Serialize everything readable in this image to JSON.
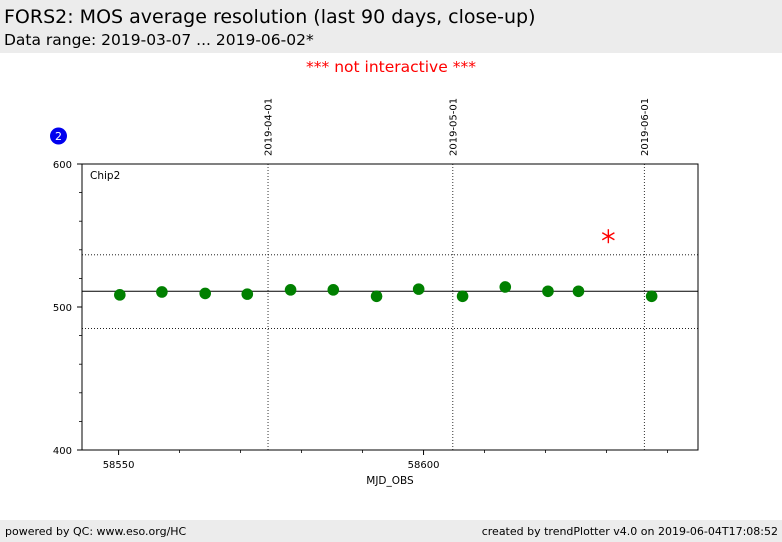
{
  "header": {
    "title": "FORS2: MOS average resolution (last 90 days, close-up)",
    "subtitle": "Data range: 2019-03-07 ... 2019-06-02*"
  },
  "notice": "*** not interactive ***",
  "badge": "2",
  "footer": {
    "left": "powered by QC: www.eso.org/HC",
    "right": "created by trendPlotter v4.0 on 2019-06-04T17:08:52"
  },
  "colors": {
    "point": "#008000",
    "outlier": "#ff0000",
    "badge": "#0000ee",
    "notice": "#ff0000"
  },
  "chart_data": {
    "type": "scatter",
    "panel_label": "Chip2",
    "xlabel": "MJD_OBS",
    "ylabel": "",
    "xlim": [
      58544,
      58645
    ],
    "ylim": [
      400,
      600
    ],
    "x_ticks": [
      58550,
      58600
    ],
    "y_ticks": [
      400,
      500,
      600
    ],
    "date_lines": [
      {
        "label": "2019-04-01",
        "x": 58574.5
      },
      {
        "label": "2019-05-01",
        "x": 58604.8
      },
      {
        "label": "2019-06-01",
        "x": 58636.2
      }
    ],
    "reference_lines": {
      "mean": 511,
      "upper": 536.5,
      "lower": 485
    },
    "series": [
      {
        "x": [
          58550.2,
          58557.1,
          58564.2,
          58571.1,
          58578.2,
          58585.2,
          58592.3,
          58599.2,
          58606.4,
          58613.4,
          58620.4,
          58625.4,
          58637.4
        ],
        "y": [
          508.5,
          510.5,
          509.5,
          509,
          512,
          512,
          507.5,
          512.5,
          507.5,
          514,
          511,
          511,
          507.5
        ]
      }
    ],
    "outliers": [
      {
        "x": 58630.3,
        "y": 549.5
      }
    ]
  }
}
